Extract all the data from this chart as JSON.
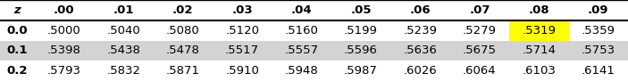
{
  "headers": [
    "z",
    ".00",
    ".01",
    ".02",
    ".03",
    ".04",
    ".05",
    ".06",
    ".07",
    ".08",
    ".09"
  ],
  "rows": [
    [
      "0.0",
      ".5000",
      ".5040",
      ".5080",
      ".5120",
      ".5160",
      ".5199",
      ".5239",
      ".5279",
      ".5319",
      ".5359"
    ],
    [
      "0.1",
      ".5398",
      ".5438",
      ".5478",
      ".5517",
      ".5557",
      ".5596",
      ".5636",
      ".5675",
      ".5714",
      ".5753"
    ],
    [
      "0.2",
      ".5793",
      ".5832",
      ".5871",
      ".5910",
      ".5948",
      ".5987",
      ".6026",
      ".6064",
      ".6103",
      ".6141"
    ]
  ],
  "highlight_yellow": [
    0,
    9
  ],
  "highlight_gray_row": 1,
  "header_bg": "#ffffff",
  "row0_bg": "#ffffff",
  "row1_bg": "#d3d3d3",
  "row2_bg": "#ffffff",
  "yellow_color": "#ffff00",
  "border_color": "#000000",
  "text_color": "#000000",
  "figsize": [
    7.03,
    0.91
  ],
  "dpi": 100
}
